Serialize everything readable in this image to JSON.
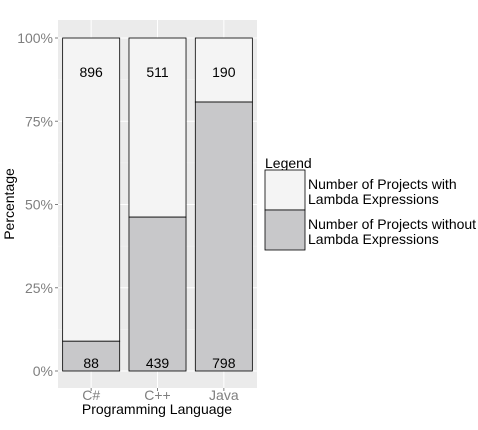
{
  "chart_data": {
    "type": "bar",
    "stacked": true,
    "normalized": true,
    "categories": [
      "C#",
      "C++",
      "Java"
    ],
    "series": [
      {
        "name": "Number of Projects with\nLambda Expressions",
        "values": [
          896,
          511,
          190
        ],
        "color": "#f4f4f4"
      },
      {
        "name": "Number of Projects without\nLambda Expressions",
        "values": [
          88,
          439,
          798
        ],
        "color": "#c8c8ca"
      }
    ],
    "xlabel": "Programming Language",
    "ylabel": "Percentage",
    "ylim": [
      0,
      1
    ],
    "yticks": [
      "0%",
      "25%",
      "50%",
      "75%",
      "100%"
    ],
    "ytick_values": [
      0,
      0.25,
      0.5,
      0.75,
      1
    ],
    "legend_title": "Legend",
    "legend_position": "right",
    "panel_background": "#ebebeb",
    "grid": true
  }
}
